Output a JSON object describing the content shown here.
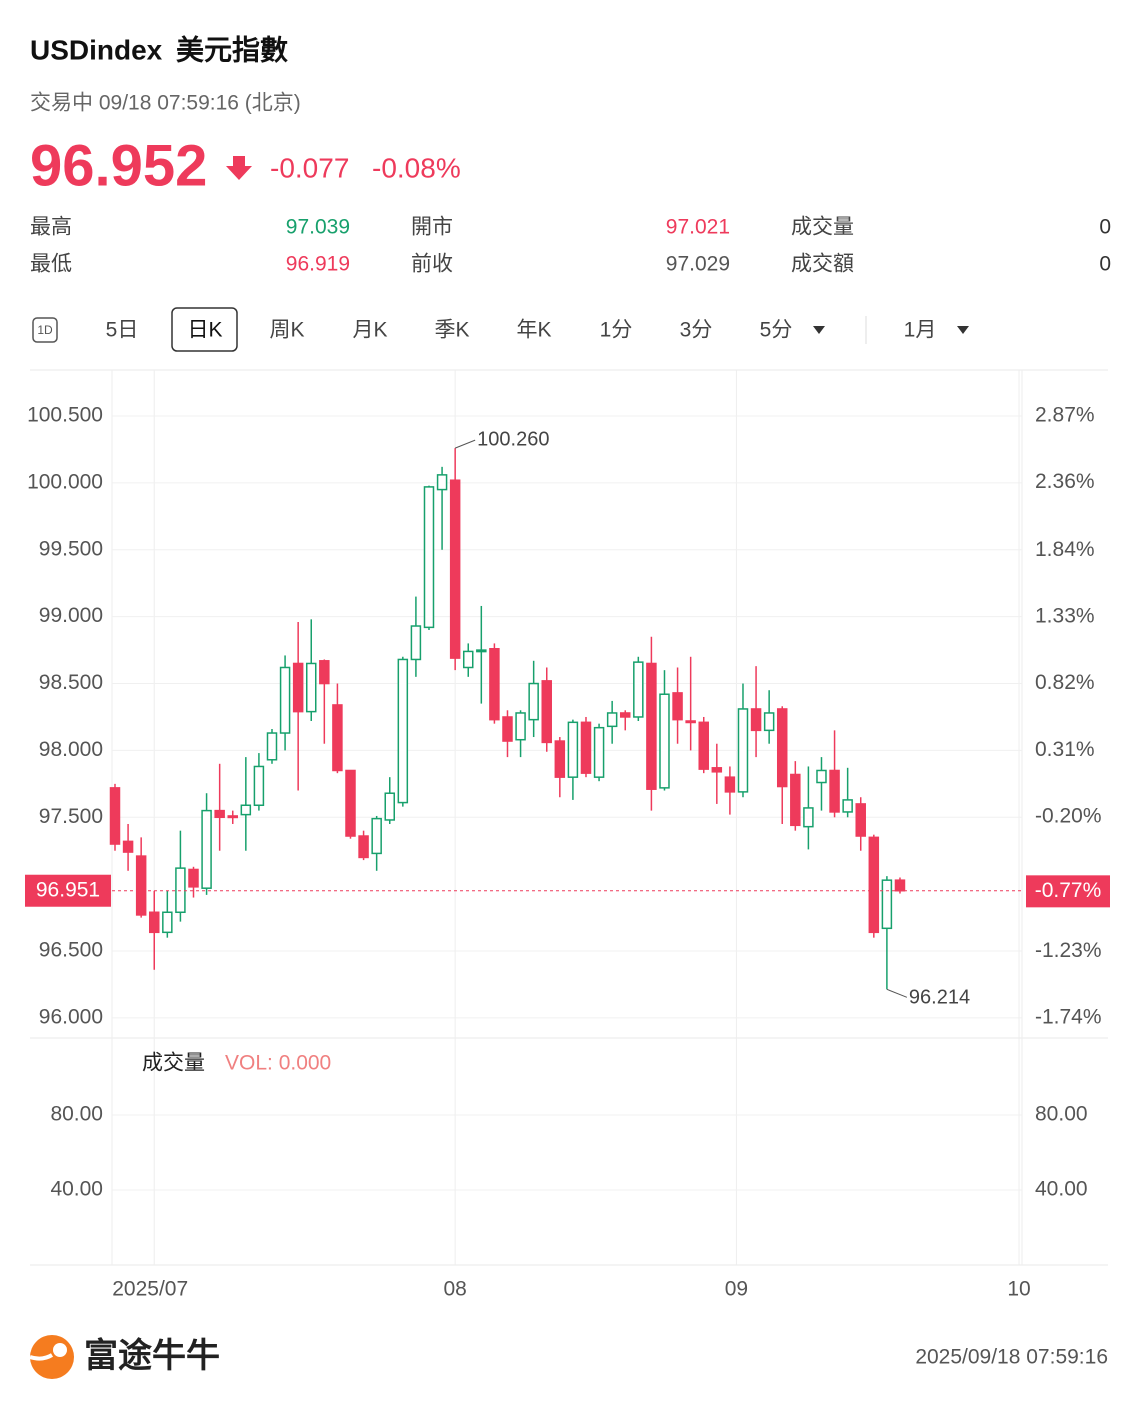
{
  "header": {
    "symbol": "USDindex",
    "name": "美元指數",
    "status": "交易中 09/18 07:59:16 (北京)",
    "price": "96.952",
    "change": "-0.077",
    "change_pct": "-0.08%"
  },
  "stats": [
    {
      "label": "最高",
      "value": "97.039"
    },
    {
      "label": "開市",
      "value": "97.021"
    },
    {
      "label": "成交量",
      "value": "0"
    },
    {
      "label": "最低",
      "value": "96.919"
    },
    {
      "label": "前收",
      "value": "97.029"
    },
    {
      "label": "成交額",
      "value": "0"
    }
  ],
  "tabs": [
    "1D",
    "5日",
    "日K",
    "周K",
    "月K",
    "季K",
    "年K",
    "1分",
    "3分",
    "5分",
    "1月"
  ],
  "chart_data": {
    "type": "candlestick",
    "up_color": "#17a06c",
    "down_color": "#ee3a5b",
    "open": [
      97.72,
      97.32,
      97.21,
      96.79,
      96.64,
      96.79,
      97.11,
      96.97,
      97.55,
      97.51,
      97.52,
      97.59,
      97.93,
      98.13,
      98.65,
      98.29,
      98.67,
      98.34,
      97.85,
      97.36,
      97.23,
      97.48,
      97.61,
      98.68,
      98.92,
      99.95,
      100.02,
      98.62,
      98.74,
      98.76,
      98.25,
      98.08,
      98.23,
      98.52,
      98.07,
      97.8,
      98.21,
      97.8,
      98.18,
      98.28,
      98.25,
      98.65,
      97.72,
      98.43,
      98.22,
      98.21,
      97.87,
      97.8,
      97.69,
      98.31,
      98.15,
      98.31,
      97.82,
      97.43,
      97.76,
      97.85,
      97.54,
      97.6,
      97.35,
      96.67,
      97.03
    ],
    "high": [
      97.75,
      97.45,
      97.35,
      96.95,
      96.95,
      97.4,
      97.13,
      97.68,
      97.9,
      97.55,
      97.95,
      97.98,
      98.16,
      98.71,
      98.96,
      98.98,
      98.68,
      98.5,
      97.85,
      97.4,
      97.51,
      97.8,
      98.7,
      99.15,
      99.98,
      100.12,
      100.26,
      98.8,
      99.08,
      98.8,
      98.3,
      98.3,
      98.67,
      98.62,
      98.1,
      98.23,
      98.25,
      98.2,
      98.37,
      98.3,
      98.7,
      98.85,
      98.6,
      98.62,
      98.7,
      98.25,
      98.05,
      97.88,
      98.5,
      98.63,
      98.45,
      98.33,
      97.92,
      97.88,
      97.95,
      98.15,
      97.87,
      97.65,
      97.37,
      97.06,
      97.05
    ],
    "low": [
      97.25,
      97.1,
      96.75,
      96.36,
      96.6,
      96.72,
      96.9,
      96.92,
      97.25,
      97.45,
      97.25,
      97.55,
      97.9,
      98.0,
      97.7,
      98.22,
      98.05,
      97.83,
      97.34,
      97.18,
      97.1,
      97.45,
      97.58,
      98.55,
      98.9,
      99.5,
      98.6,
      98.55,
      98.35,
      98.2,
      97.95,
      97.95,
      98.1,
      97.99,
      97.65,
      97.63,
      97.8,
      97.77,
      98.05,
      98.15,
      98.22,
      97.55,
      97.7,
      98.05,
      98.0,
      97.83,
      97.6,
      97.52,
      97.65,
      97.95,
      98.05,
      97.45,
      97.4,
      97.26,
      97.55,
      97.5,
      97.5,
      97.25,
      96.6,
      96.214,
      96.93
    ],
    "close": [
      97.3,
      97.24,
      96.77,
      96.64,
      96.79,
      97.12,
      96.98,
      97.55,
      97.5,
      97.5,
      97.59,
      97.88,
      98.13,
      98.62,
      98.29,
      98.65,
      98.5,
      97.85,
      97.36,
      97.2,
      97.49,
      97.68,
      98.68,
      98.93,
      99.97,
      100.06,
      98.69,
      98.74,
      98.75,
      98.23,
      98.07,
      98.28,
      98.5,
      98.06,
      97.8,
      98.21,
      97.83,
      98.17,
      98.28,
      98.25,
      98.66,
      97.71,
      98.42,
      98.23,
      98.21,
      97.86,
      97.84,
      97.69,
      98.31,
      98.15,
      98.28,
      97.73,
      97.44,
      97.57,
      97.85,
      97.54,
      97.63,
      97.36,
      96.64,
      97.03,
      96.951
    ],
    "xticks": [
      {
        "value": 3,
        "label": "2025/07"
      },
      {
        "value": 26,
        "label": "08"
      },
      {
        "value": 47.5,
        "label": "09"
      },
      {
        "value": 69.1,
        "label": "10"
      }
    ],
    "ylim": [
      95.85,
      100.844
    ],
    "yticks": [
      {
        "value": 100.5,
        "label": "100.500"
      },
      {
        "value": 100,
        "label": "100.000"
      },
      {
        "value": 99.5,
        "label": "99.500"
      },
      {
        "value": 99,
        "label": "99.000"
      },
      {
        "value": 98.5,
        "label": "98.500"
      },
      {
        "value": 98,
        "label": "98.000"
      },
      {
        "value": 97.5,
        "label": "97.500"
      },
      {
        "value": 96.5,
        "label": "96.500"
      },
      {
        "value": 96,
        "label": "96.000"
      }
    ],
    "y2lim": [
      -1.893,
      3.222
    ],
    "y2ticks": [
      {
        "value": 2.87,
        "label": "2.87%"
      },
      {
        "value": 2.36,
        "label": "2.36%"
      },
      {
        "value": 1.84,
        "label": "1.84%"
      },
      {
        "value": 1.33,
        "label": "1.33%"
      },
      {
        "value": 0.82,
        "label": "0.82%"
      },
      {
        "value": 0.31,
        "label": "0.31%"
      },
      {
        "value": -0.2,
        "label": "-0.20%"
      },
      {
        "value": -1.23,
        "label": "-1.23%"
      },
      {
        "value": -1.74,
        "label": "-1.74%"
      }
    ],
    "last": {
      "value": 96.951,
      "label": "96.951",
      "pct": -0.77,
      "pct_label": "-0.77%"
    },
    "high_label": "100.260",
    "low_label": "96.214",
    "volume": {
      "title": "成交量",
      "label": "VOL: 0.000",
      "ylim": [
        0,
        120
      ],
      "yticks": [
        {
          "value": 80,
          "label": "80.00"
        },
        {
          "value": 40,
          "label": "40.00"
        }
      ]
    }
  },
  "footer": {
    "brand": "富途牛牛",
    "timestamp": "2025/09/18 07:59:16"
  }
}
